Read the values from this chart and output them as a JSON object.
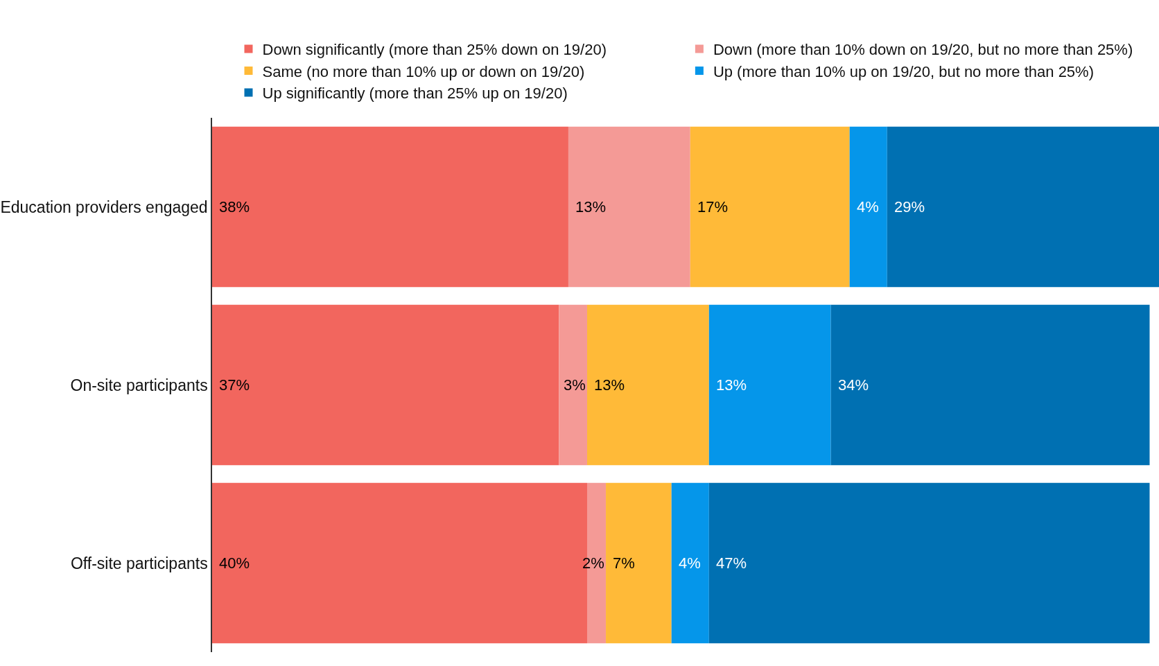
{
  "chart_data": {
    "type": "bar",
    "orientation": "horizontal",
    "stacked": true,
    "legend": "top",
    "tick_labels": "y",
    "categories": [
      "Education providers engaged",
      "On-site participants",
      "Off-site participants"
    ],
    "series": [
      {
        "name": "Down significantly (more than 25% down on 19/20)",
        "color": "#f2665e",
        "values": [
          38,
          37,
          40
        ],
        "value_labels": [
          "38%",
          "37%",
          "40%"
        ]
      },
      {
        "name": "Down (more than 10% down on 19/20, but no more than 25%)",
        "color": "#f49a96",
        "values": [
          13,
          3,
          2
        ],
        "value_labels": [
          "13%",
          "3%",
          "2%"
        ]
      },
      {
        "name": "Same (no more than 10% up or down on 19/20)",
        "color": "#ffba38",
        "values": [
          17,
          13,
          7
        ],
        "value_labels": [
          "17%",
          "13%",
          "7%"
        ]
      },
      {
        "name": "Up (more than 10% up on 19/20, but no more than 25%)",
        "color": "#0596ea",
        "values": [
          4,
          13,
          4
        ],
        "value_labels": [
          "4%",
          "13%",
          "4%"
        ]
      },
      {
        "name": "Up significantly (more than 25% up on 19/20)",
        "color": "#0070b2",
        "values": [
          29,
          34,
          47
        ],
        "value_labels": [
          "29%",
          "34%",
          "47%"
        ]
      }
    ]
  }
}
